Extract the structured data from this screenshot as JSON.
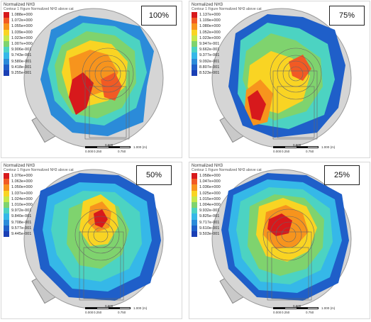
{
  "panels": [
    {
      "id": "p100",
      "percent": "100%",
      "legend_title": "Normalized NH3",
      "legend_subtitle": "Contour 1 Figure Normalized NH3 above cat",
      "legend_values": [
        "1.088e+000",
        "1.072e+000",
        "1.055e+000",
        "1.039e+000",
        "1.023e+000",
        "1.007e+000",
        "9.906e-001",
        "9.743e-001",
        "9.580e-001",
        "9.418e-001",
        "9.255e-001"
      ],
      "scale_labels": [
        "0.000",
        "0.500",
        "1.000 (m)",
        "0.250",
        "0.750"
      ]
    },
    {
      "id": "p75",
      "percent": "75%",
      "legend_title": "Normalized NH3",
      "legend_subtitle": "Contour 1 Figure Normalized NH3 above cat",
      "legend_values": [
        "1.137e+000",
        "1.109e+000",
        "1.080e+000",
        "1.052e+000",
        "1.023e+000",
        "9.947e-001",
        "9.662e-001",
        "9.377e-001",
        "9.092e-001",
        "8.807e-001",
        "8.523e-001"
      ],
      "scale_labels": [
        "0.000",
        "0.500",
        "1.000 (m)",
        "0.250",
        "0.750"
      ]
    },
    {
      "id": "p50",
      "percent": "50%",
      "legend_title": "Normalized NH3",
      "legend_subtitle": "Contour 1 Figure Normalized NH3 above cat",
      "legend_values": [
        "1.076e+000",
        "1.063e+000",
        "1.050e+000",
        "1.037e+000",
        "1.024e+000",
        "1.010e+000",
        "9.972e-001",
        "9.840e-001",
        "9.708e-001",
        "9.577e-001",
        "9.445e-001"
      ],
      "scale_labels": [
        "0.000",
        "0.500",
        "1.000 (m)",
        "0.250",
        "0.750"
      ]
    },
    {
      "id": "p25",
      "percent": "25%",
      "legend_title": "Normalized NH3",
      "legend_subtitle": "Contour 1 Figure Normalized NH3 above cat",
      "legend_values": [
        "1.058e+000",
        "1.047e+000",
        "1.036e+000",
        "1.025e+000",
        "1.015e+000",
        "1.004e+000",
        "9.932e-001",
        "9.825e-001",
        "9.717e-001",
        "9.610e-001",
        "9.503e-001"
      ],
      "scale_labels": [
        "0.000",
        "0.500",
        "1.000 (m)",
        "0.250",
        "0.750"
      ]
    }
  ],
  "colors": {
    "legend": [
      "#d7191c",
      "#f15a24",
      "#f7941d",
      "#f9d423",
      "#c6e84b",
      "#7fd36e",
      "#4cd3c2",
      "#35b8e8",
      "#2b8bd9",
      "#1f5fc9",
      "#1a3fb5"
    ],
    "cylinder_fill": "#c9c9c9",
    "outline": "#777777"
  }
}
